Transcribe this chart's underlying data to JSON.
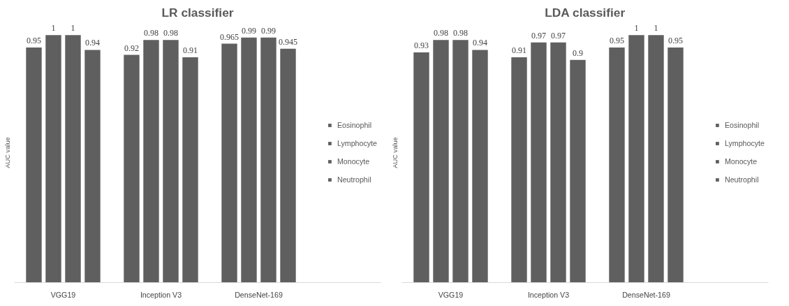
{
  "chart_data": [
    {
      "type": "bar",
      "title": "LR classifier",
      "ylabel": "AUC value",
      "categories": [
        "VGG19",
        "Inception V3",
        "DenseNet-169"
      ],
      "tick_labels": "x",
      "grid": false,
      "legend": "right",
      "data_labels": true,
      "series": [
        {
          "name": "Eosinophil",
          "color": "#5f5f5f",
          "values": [
            0.95,
            0.92,
            0.965
          ]
        },
        {
          "name": "Lymphocyte",
          "color": "#5f5f5f",
          "values": [
            1,
            0.98,
            0.99
          ]
        },
        {
          "name": "Monocyte",
          "color": "#5f5f5f",
          "values": [
            1,
            0.98,
            0.99
          ]
        },
        {
          "name": "Neutrophil",
          "color": "#5f5f5f",
          "values": [
            0.94,
            0.91,
            0.945
          ]
        }
      ]
    },
    {
      "type": "bar",
      "title": "LDA classifier",
      "ylabel": "AUC value",
      "categories": [
        "VGG19",
        "Inception V3",
        "DenseNet-169"
      ],
      "tick_labels": "x",
      "grid": false,
      "legend": "right",
      "data_labels": true,
      "series": [
        {
          "name": "Eosinophil",
          "color": "#5f5f5f",
          "values": [
            0.93,
            0.91,
            0.95
          ]
        },
        {
          "name": "Lymphocyte",
          "color": "#5f5f5f",
          "values": [
            0.98,
            0.97,
            1
          ]
        },
        {
          "name": "Monocyte",
          "color": "#5f5f5f",
          "values": [
            0.98,
            0.97,
            1
          ]
        },
        {
          "name": "Neutrophil",
          "color": "#5f5f5f",
          "values": [
            0.94,
            0.9,
            0.95
          ]
        }
      ]
    }
  ]
}
